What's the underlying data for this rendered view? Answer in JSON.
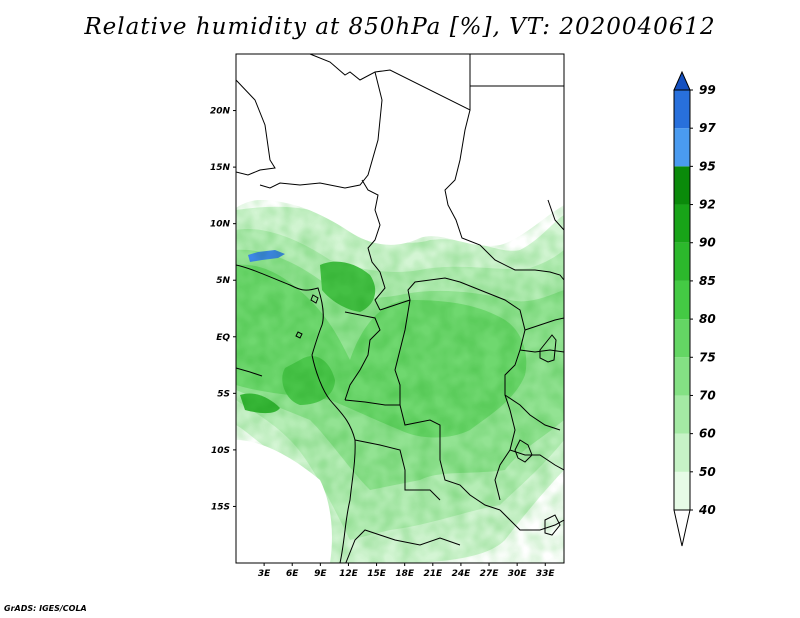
{
  "title": "Relative humidity at 850hPa [%], VT: 2020040612",
  "credit": "GrADS: IGES/COLA",
  "map": {
    "lon_range": [
      0,
      35
    ],
    "lat_range": [
      -20,
      25
    ],
    "lat_ticks": [
      {
        "value": 20,
        "label": "20N"
      },
      {
        "value": 15,
        "label": "15N"
      },
      {
        "value": 10,
        "label": "10N"
      },
      {
        "value": 5,
        "label": "5N"
      },
      {
        "value": 0,
        "label": "EQ"
      },
      {
        "value": -5,
        "label": "5S"
      },
      {
        "value": -10,
        "label": "10S"
      },
      {
        "value": -15,
        "label": "15S"
      }
    ],
    "lon_ticks": [
      {
        "value": 3,
        "label": "3E"
      },
      {
        "value": 6,
        "label": "6E"
      },
      {
        "value": 9,
        "label": "9E"
      },
      {
        "value": 12,
        "label": "12E"
      },
      {
        "value": 15,
        "label": "15E"
      },
      {
        "value": 18,
        "label": "18E"
      },
      {
        "value": 21,
        "label": "21E"
      },
      {
        "value": 24,
        "label": "24E"
      },
      {
        "value": 27,
        "label": "27E"
      },
      {
        "value": 30,
        "label": "30E"
      },
      {
        "value": 33,
        "label": "33E"
      }
    ]
  },
  "colorbar": {
    "levels": [
      "40",
      "50",
      "60",
      "70",
      "75",
      "80",
      "85",
      "90",
      "92",
      "95",
      "97",
      "99"
    ],
    "colors": [
      "#ffffff",
      "#e6fbe6",
      "#c6f3c6",
      "#a4eaa4",
      "#84e184",
      "#64d664",
      "#44ca44",
      "#2cb82c",
      "#18a418",
      "#0a8a0a",
      "#4a9bf0",
      "#2870dc",
      "#1450c0"
    ]
  }
}
